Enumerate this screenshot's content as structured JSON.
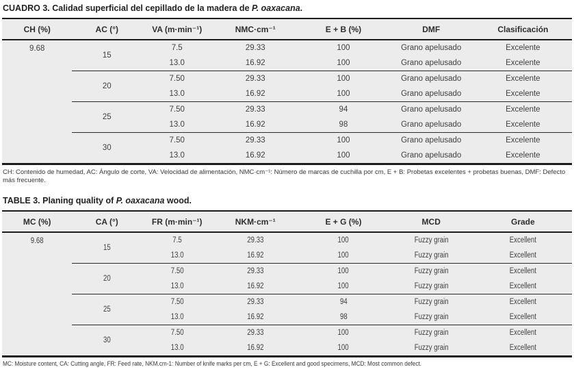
{
  "tables": [
    {
      "title_pre": "CUADRO 3. Calidad superficial del cepillado de la madera de ",
      "title_species": "P. oaxacana",
      "title_post": ".",
      "columns": [
        "CH (%)",
        "AC (°)",
        "VA (m·min⁻¹)",
        "NMC·cm⁻¹",
        "E + B (%)",
        "DMF",
        "Clasificación"
      ],
      "moisture": "9.68",
      "groups": [
        {
          "angle": "15",
          "rows": [
            [
              "7.5",
              "29.33",
              "100",
              "Grano apelusado",
              "Excelente"
            ],
            [
              "13.0",
              "16.92",
              "100",
              "Grano apelusado",
              "Excelente"
            ]
          ]
        },
        {
          "angle": "20",
          "rows": [
            [
              "7.50",
              "29.33",
              "100",
              "Grano apelusado",
              "Excelente"
            ],
            [
              "13.0",
              "16.92",
              "100",
              "Grano apelusado",
              "Excelente"
            ]
          ]
        },
        {
          "angle": "25",
          "rows": [
            [
              "7.50",
              "29.33",
              "94",
              "Grano apelusado",
              "Excelente"
            ],
            [
              "13.0",
              "16.92",
              "98",
              "Grano apelusado",
              "Excelente"
            ]
          ]
        },
        {
          "angle": "30",
          "rows": [
            [
              "7.50",
              "29.33",
              "100",
              "Grano apelusado",
              "Excelente"
            ],
            [
              "13.0",
              "16.92",
              "100",
              "Grano apelusado",
              "Excelente"
            ]
          ]
        }
      ],
      "footnote": "CH: Contenido de humedad, AC: Ángulo de corte, VA: Velocidad de alimentación, NMC·cm⁻¹: Número de marcas de cuchilla por cm, E + B: Probetas excelentes + probetas buenas, DMF: Defecto más frecuente."
    },
    {
      "title_pre": "TABLE 3. Planing quality of ",
      "title_species": "P. oaxacana",
      "title_post": " wood.",
      "columns": [
        "MC (%)",
        "CA (°)",
        "FR (m·min⁻¹)",
        "NKM·cm⁻¹",
        "E + G (%)",
        "MCD",
        "Grade"
      ],
      "moisture": "9.68",
      "groups": [
        {
          "angle": "15",
          "rows": [
            [
              "7.5",
              "29.33",
              "100",
              "Fuzzy grain",
              "Excellent"
            ],
            [
              "13.0",
              "16.92",
              "100",
              "Fuzzy grain",
              "Excellent"
            ]
          ]
        },
        {
          "angle": "20",
          "rows": [
            [
              "7.50",
              "29.33",
              "100",
              "Fuzzy grain",
              "Excellent"
            ],
            [
              "13.0",
              "16.92",
              "100",
              "Fuzzy grain",
              "Excellent"
            ]
          ]
        },
        {
          "angle": "25",
          "rows": [
            [
              "7.50",
              "29.33",
              "94",
              "Fuzzy grain",
              "Excellent"
            ],
            [
              "13.0",
              "16.92",
              "98",
              "Fuzzy grain",
              "Excellent"
            ]
          ]
        },
        {
          "angle": "30",
          "rows": [
            [
              "7.50",
              "29.33",
              "100",
              "Fuzzy grain",
              "Excellent"
            ],
            [
              "13.0",
              "16.92",
              "100",
              "Fuzzy grain",
              "Excellent"
            ]
          ]
        }
      ],
      "footnote": "MC: Moisture content, CA: Cutting angle, FR: Feed rate, NKM.cm-1: Number of knife marks per cm, E + G: Excellent and good specimens, MCD: Most common defect.",
      "condensed": true
    }
  ],
  "colors": {
    "table_bg": "#ececec",
    "border": "#1c1c1c",
    "text": "#3f3f3f"
  }
}
